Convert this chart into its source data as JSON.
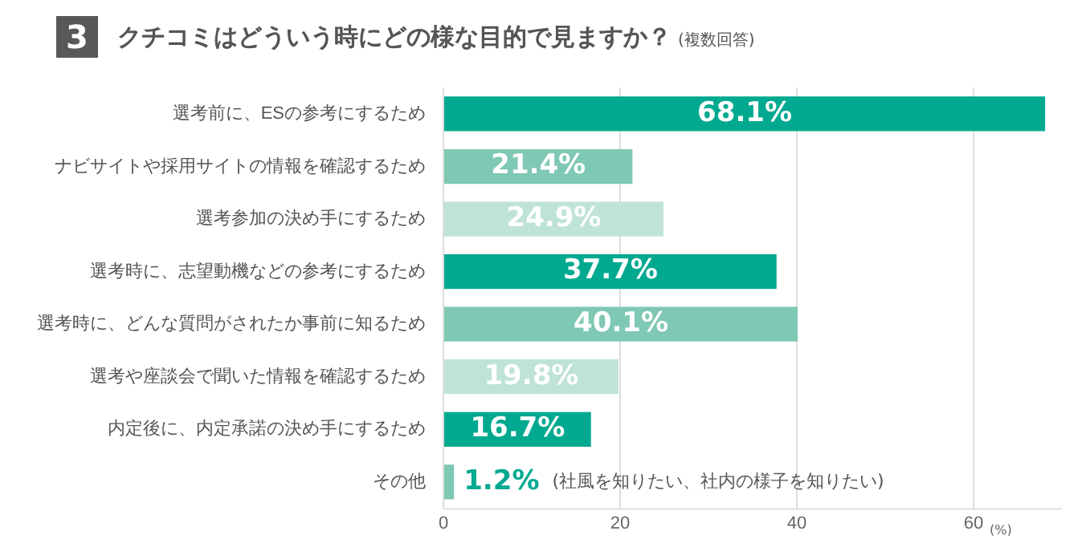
{
  "chart_data": {
    "type": "bar",
    "orientation": "horizontal",
    "title": "クチコミはどういう時にどの様な目的で見ますか？",
    "subtitle": "(複数回答)",
    "categories": [
      "選考前に、ESの参考にするため",
      "ナビサイトや採用サイトの情報を確認するため",
      "選考参加の決め手にするため",
      "選考時に、志望動機などの参考にするため",
      "選考時に、どんな質問がされたか事前に知るため",
      "選考や座談会で聞いた情報を確認するため",
      "内定後に、内定承諾の決め手にするため",
      "その他"
    ],
    "values": [
      68.1,
      21.4,
      24.9,
      37.7,
      40.1,
      19.8,
      16.7,
      1.2
    ],
    "colors": [
      "#00a98f",
      "#7fc8b4",
      "#bfe3d9",
      "#00a98f",
      "#7fc8b4",
      "#bfe3d9",
      "#00a98f",
      "#7fc8b4"
    ],
    "value_labels": [
      "68.1%",
      "21.4%",
      "24.9%",
      "37.7%",
      "40.1%",
      "19.8%",
      "16.7%",
      "1.2%"
    ],
    "xlim": [
      0,
      70
    ],
    "xticks": [
      0,
      20,
      40,
      60
    ],
    "xlabel": "(%)",
    "grid": "x",
    "annotations": [
      "3",
      "(社風を知りたい、社内の様子を知りたい)"
    ]
  }
}
